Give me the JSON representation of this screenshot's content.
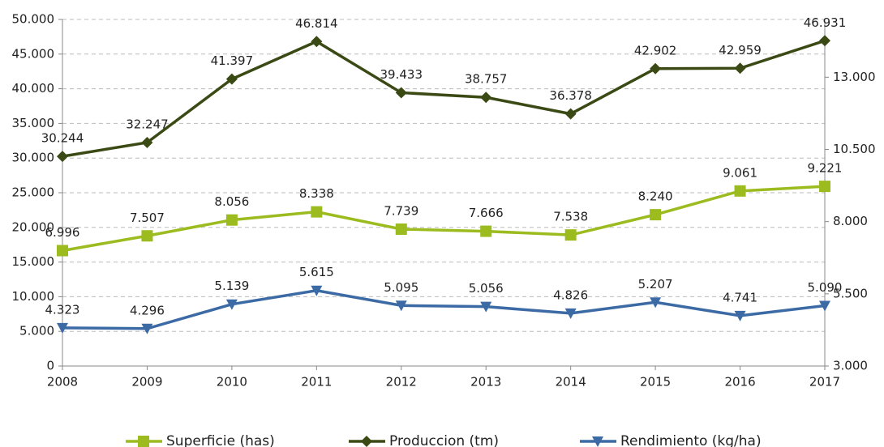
{
  "chart_data": {
    "type": "line",
    "categories": [
      "2008",
      "2009",
      "2010",
      "2011",
      "2012",
      "2013",
      "2014",
      "2015",
      "2016",
      "2017"
    ],
    "ylim": [
      0,
      50000
    ],
    "yticks": [
      0,
      {
        "value": 5000,
        "label": "5.000"
      },
      {
        "value": 10000,
        "label": "10.000"
      },
      {
        "value": 15000,
        "label": "15.000"
      },
      {
        "value": 20000,
        "label": "20.000"
      },
      {
        "value": 25000,
        "label": "25.000"
      },
      {
        "value": 30000,
        "label": "30.000"
      },
      {
        "value": 35000,
        "label": "35.000"
      },
      {
        "value": 40000,
        "label": "40.000"
      },
      {
        "value": 45000,
        "label": "45.000"
      },
      {
        "value": 50000,
        "label": "50.000"
      }
    ],
    "y2lim": [
      3000,
      15000
    ],
    "y2ticks": [
      {
        "value": 3000,
        "label": "3.000"
      },
      {
        "value": 5500,
        "label": "5.500"
      },
      {
        "value": 8000,
        "label": "8.000"
      },
      {
        "value": 10500,
        "label": "10.500"
      },
      {
        "value": 13000,
        "label": "13.000"
      }
    ],
    "grid": true,
    "legend": "bottom",
    "series": [
      {
        "name": "Superficie (has)",
        "color": "#9bbb1f",
        "marker": "square",
        "axis": "y2",
        "values": [
          6996,
          7507,
          8056,
          8338,
          7739,
          7666,
          7538,
          8240,
          9061,
          9221
        ],
        "value_labels": [
          "6.996",
          "7.507",
          "8.056",
          "8.338",
          "7.739",
          "7.666",
          "7.538",
          "8.240",
          "9.061",
          "9.221"
        ]
      },
      {
        "name": "Produccion (tm)",
        "color": "#3b4a14",
        "marker": "diamond",
        "axis": "y",
        "values": [
          30244,
          32247,
          41397,
          46814,
          39433,
          38757,
          36378,
          42902,
          42959,
          46931
        ],
        "value_labels": [
          "30.244",
          "32.247",
          "41.397",
          "46.814",
          "39.433",
          "38.757",
          "36.378",
          "42.902",
          "42.959",
          "46.931"
        ]
      },
      {
        "name": "Rendimiento (kg/ha)",
        "color": "#3c6aa5",
        "marker": "triangle-down",
        "axis": "y2",
        "values": [
          4323,
          4296,
          5139,
          5615,
          5095,
          5056,
          4826,
          5207,
          4741,
          5090
        ],
        "value_labels": [
          "4.323",
          "4.296",
          "5.139",
          "5.615",
          "5.095",
          "5.056",
          "4.826",
          "5.207",
          "4.741",
          "5.090"
        ]
      }
    ]
  }
}
